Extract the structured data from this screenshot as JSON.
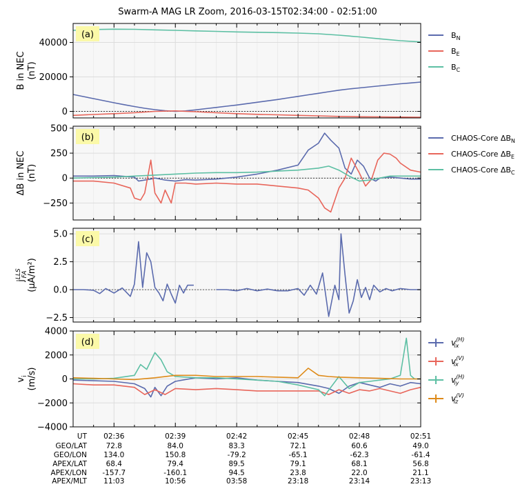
{
  "figure": {
    "title": "Swarm-A MAG LR Zoom, 2016-03-15T02:34:00 - 02:51:00",
    "background": "#ffffff",
    "plot_background": "#f7f7f7",
    "label_box_color": "#fbf9a8"
  },
  "colors": {
    "blue": "#5a6aad",
    "red": "#e8655a",
    "teal": "#5cbfa3",
    "orange": "#de8a18"
  },
  "chart_data": [
    {
      "type": "line",
      "panel_label": "(a)",
      "ylabel": [
        "B in NEC",
        "(nT)"
      ],
      "x": "UT time",
      "ylim": [
        -3800,
        51000
      ],
      "yticks": [
        0,
        20000,
        40000
      ],
      "ytick_labels": [
        "0",
        "20000",
        "40000"
      ],
      "zero_line": true,
      "legend": "right-outside",
      "series": [
        {
          "name": "B_N",
          "legend_main": "B",
          "legend_sub": "N",
          "color": "blue",
          "x": [
            0.0,
            0.5,
            1.0,
            1.5,
            2.0,
            2.5,
            3.0,
            3.5,
            4.0,
            4.5,
            5.0,
            5.5,
            6.0,
            6.5,
            7.0,
            7.5,
            8.0,
            8.5,
            9.0,
            9.5,
            10.0,
            10.5,
            11.0,
            11.5,
            12.0,
            12.5,
            13.0,
            13.5,
            14.0,
            14.5,
            15.0,
            15.5,
            16.0,
            16.5,
            17.0
          ],
          "y": [
            9800,
            8600,
            7400,
            6200,
            5000,
            3900,
            2800,
            1800,
            1000,
            400,
            0,
            300,
            900,
            1600,
            2300,
            3000,
            3700,
            4500,
            5300,
            6100,
            6900,
            7800,
            8700,
            9600,
            10500,
            11400,
            12300,
            13000,
            13600,
            14200,
            14800,
            15400,
            16000,
            16500,
            17000
          ]
        },
        {
          "name": "B_E",
          "legend_main": "B",
          "legend_sub": "E",
          "color": "red",
          "x": [
            0.0,
            1.0,
            2.0,
            3.0,
            4.0,
            5.0,
            6.0,
            7.0,
            8.0,
            9.0,
            10.0,
            11.0,
            12.0,
            13.0,
            14.0,
            15.0,
            16.0,
            17.0
          ],
          "y": [
            -2300,
            -1800,
            -1300,
            -800,
            0,
            300,
            -200,
            -800,
            -1300,
            -1700,
            -2000,
            -2300,
            -2600,
            -2900,
            -3100,
            -3200,
            -3300,
            -3400
          ]
        },
        {
          "name": "B_C",
          "legend_main": "B",
          "legend_sub": "C",
          "color": "teal",
          "x": [
            0.0,
            1.0,
            2.0,
            3.0,
            4.0,
            5.0,
            6.0,
            7.0,
            8.0,
            9.0,
            10.0,
            11.0,
            12.0,
            13.0,
            14.0,
            15.0,
            16.0,
            17.0
          ],
          "y": [
            47000,
            47500,
            47700,
            47600,
            47300,
            47000,
            46700,
            46400,
            46100,
            45900,
            45700,
            45400,
            45000,
            44200,
            43200,
            42100,
            41000,
            40300
          ]
        }
      ]
    },
    {
      "type": "line",
      "panel_label": "(b)",
      "ylabel": [
        "ΔB in NEC",
        "(nT)"
      ],
      "ylim": [
        -420,
        520
      ],
      "yticks": [
        -250,
        0,
        250,
        500
      ],
      "ytick_labels": [
        "−250",
        "0",
        "250",
        "500"
      ],
      "zero_line": true,
      "legend": "right-outside",
      "series": [
        {
          "name": "CHAOS-Core ΔB_N",
          "legend_main": "CHAOS-Core ΔB",
          "legend_sub": "N",
          "color": "blue",
          "x": [
            0.0,
            1.0,
            2.0,
            3.0,
            3.2,
            3.5,
            3.8,
            4.0,
            4.5,
            5.0,
            5.5,
            6.0,
            7.0,
            8.0,
            9.0,
            10.0,
            11.0,
            11.5,
            12.0,
            12.3,
            12.6,
            13.0,
            13.3,
            13.6,
            13.9,
            14.2,
            14.5,
            14.8,
            15.0,
            15.5,
            16.0,
            16.5,
            17.0
          ],
          "y": [
            20,
            20,
            25,
            10,
            -30,
            -20,
            -10,
            0,
            -20,
            -30,
            -15,
            -20,
            -10,
            10,
            40,
            80,
            130,
            280,
            350,
            450,
            380,
            300,
            100,
            40,
            180,
            120,
            0,
            -30,
            0,
            10,
            0,
            -10,
            -10
          ]
        },
        {
          "name": "CHAOS-Core ΔB_E",
          "legend_main": "CHAOS-Core ΔB",
          "legend_sub": "E",
          "color": "red",
          "x": [
            0.0,
            1.0,
            2.0,
            2.8,
            3.0,
            3.3,
            3.5,
            3.8,
            4.0,
            4.3,
            4.5,
            4.8,
            5.0,
            5.5,
            6.0,
            7.0,
            8.0,
            9.0,
            10.0,
            11.0,
            11.5,
            12.0,
            12.3,
            12.6,
            13.0,
            13.3,
            13.6,
            14.0,
            14.3,
            14.6,
            14.9,
            15.2,
            15.5,
            15.8,
            16.0,
            16.5,
            17.0
          ],
          "y": [
            -30,
            -30,
            -50,
            -100,
            -200,
            -220,
            -150,
            180,
            -150,
            -250,
            -120,
            -250,
            -50,
            -50,
            -60,
            -50,
            -60,
            -60,
            -80,
            -100,
            -120,
            -200,
            -300,
            -340,
            -100,
            0,
            200,
            50,
            -80,
            -10,
            180,
            250,
            240,
            200,
            150,
            80,
            60
          ]
        },
        {
          "name": "CHAOS-Core ΔB_C",
          "legend_main": "CHAOS-Core ΔB",
          "legend_sub": "C",
          "color": "teal",
          "x": [
            0.0,
            1.0,
            2.0,
            3.0,
            4.0,
            5.0,
            6.0,
            7.0,
            8.0,
            9.0,
            10.0,
            11.0,
            12.0,
            12.5,
            13.0,
            13.5,
            14.0,
            14.5,
            15.0,
            15.5,
            16.0,
            17.0
          ],
          "y": [
            0,
            5,
            10,
            20,
            30,
            40,
            50,
            55,
            55,
            60,
            70,
            80,
            100,
            120,
            80,
            20,
            -30,
            -20,
            0,
            20,
            20,
            20
          ]
        }
      ]
    },
    {
      "type": "line",
      "panel_label": "(c)",
      "ylabel": [
        "j_FA^LLS",
        "(μA/m²)"
      ],
      "ylabel_main": "j",
      "ylabel_sup": "LLS",
      "ylabel_sub": "FA",
      "ylabel_unit": "(μA/m²)",
      "ylim": [
        -2.9,
        5.5
      ],
      "yticks": [
        -2.5,
        0.0,
        2.5,
        5.0
      ],
      "ytick_labels": [
        "−2.5",
        "0.0",
        "2.5",
        "5.0"
      ],
      "zero_line": true,
      "series": [
        {
          "name": "",
          "color": "blue",
          "x": [
            0.0,
            0.5,
            1.0,
            1.3,
            1.6,
            2.0,
            2.4,
            2.8,
            3.0,
            3.2,
            3.4,
            3.6,
            3.8,
            4.0,
            4.2,
            4.4,
            4.6,
            4.8,
            5.0,
            5.2,
            5.4,
            5.6,
            5.9
          ],
          "y": [
            0,
            0,
            -0.05,
            -0.35,
            0.1,
            -0.3,
            0.15,
            -0.6,
            0.5,
            4.3,
            0.2,
            3.3,
            2.5,
            0.2,
            -0.3,
            -1.0,
            0.5,
            -0.4,
            -1.2,
            0.4,
            -0.3,
            0.4,
            0.4
          ]
        },
        {
          "name": "",
          "color": "blue",
          "x": [
            7.0,
            7.5,
            8.0,
            8.5,
            9.0,
            9.5,
            10.0,
            10.5,
            11.0,
            11.3,
            11.6,
            11.9,
            12.2,
            12.5,
            12.8,
            13.0,
            13.1,
            13.3,
            13.5,
            13.7,
            13.9,
            14.1,
            14.3,
            14.5,
            14.7,
            15.0,
            15.3,
            15.6,
            16.0,
            16.5,
            17.0
          ],
          "y": [
            0,
            0,
            -0.1,
            0.1,
            -0.1,
            0.05,
            -0.1,
            -0.1,
            0.1,
            -0.5,
            0.4,
            -0.4,
            1.5,
            -2.4,
            0.4,
            -0.9,
            5.0,
            1.3,
            -2.1,
            -1.0,
            0.9,
            -0.7,
            0.2,
            -0.9,
            0.4,
            -0.2,
            0.1,
            -0.1,
            0.1,
            0,
            0
          ]
        }
      ]
    },
    {
      "type": "line",
      "panel_label": "(d)",
      "ylabel": [
        "v_i",
        "(m/s)"
      ],
      "ylabel_main": "v",
      "ylabel_sub": "i",
      "ylabel_unit": "(m/s)",
      "ylim": [
        -4000,
        4000
      ],
      "yticks": [
        -4000,
        -2000,
        0,
        2000,
        4000
      ],
      "ytick_labels": [
        "−4000",
        "−2000",
        "0",
        "2000",
        "4000"
      ],
      "legend": "right-outside",
      "series": [
        {
          "name": "v_ix^(H)",
          "legend_main": "v",
          "legend_sub": "ix",
          "legend_sup": "(H)",
          "color": "blue",
          "x": [
            0.0,
            1.0,
            2.0,
            3.0,
            3.5,
            3.8,
            4.0,
            4.3,
            4.6,
            5.0,
            6.0,
            7.0,
            8.0,
            9.0,
            10.0,
            11.0,
            12.0,
            12.5,
            13.0,
            13.5,
            14.0,
            14.5,
            15.0,
            15.5,
            16.0,
            16.5,
            17.0
          ],
          "y": [
            -100,
            -150,
            -200,
            -400,
            -800,
            -1500,
            -700,
            -1400,
            -600,
            -200,
            100,
            0,
            100,
            -100,
            -200,
            -300,
            -600,
            -800,
            -1200,
            -600,
            -300,
            -500,
            -700,
            -400,
            -600,
            -300,
            -400
          ]
        },
        {
          "name": "v_ix^(V)",
          "legend_main": "v",
          "legend_sub": "ix",
          "legend_sup": "(V)",
          "color": "red",
          "x": [
            0.0,
            1.0,
            2.0,
            3.0,
            3.5,
            4.0,
            4.5,
            5.0,
            6.0,
            7.0,
            8.0,
            9.0,
            10.0,
            11.0,
            12.0,
            12.5,
            13.0,
            13.5,
            14.0,
            14.5,
            15.0,
            15.5,
            16.0,
            16.5,
            17.0
          ],
          "y": [
            -400,
            -500,
            -500,
            -700,
            -1300,
            -900,
            -1300,
            -800,
            -900,
            -800,
            -900,
            -1000,
            -1000,
            -1000,
            -1000,
            -1300,
            -900,
            -1200,
            -900,
            -1000,
            -800,
            -1000,
            -1200,
            -900,
            -700
          ]
        },
        {
          "name": "v_iy^(H)",
          "legend_main": "v",
          "legend_sub": "iy",
          "legend_sup": "(H)",
          "color": "teal",
          "x": [
            0.0,
            1.0,
            2.0,
            3.0,
            3.3,
            3.6,
            4.0,
            4.3,
            4.6,
            5.0,
            6.0,
            7.0,
            8.0,
            9.0,
            10.0,
            11.0,
            12.0,
            12.3,
            12.6,
            13.0,
            13.5,
            14.0,
            14.5,
            15.0,
            15.5,
            16.0,
            16.3,
            16.5,
            16.7,
            17.0
          ],
          "y": [
            0,
            0,
            50,
            300,
            1200,
            800,
            2200,
            1600,
            600,
            200,
            100,
            100,
            0,
            -100,
            -200,
            -500,
            -900,
            -1400,
            -700,
            200,
            -800,
            -300,
            -200,
            -100,
            0,
            300,
            3400,
            300,
            0,
            0
          ]
        },
        {
          "name": "v_iz^(V)",
          "legend_main": "v",
          "legend_sub": "iz",
          "legend_sup": "(V)",
          "color": "orange",
          "x": [
            0.0,
            1.0,
            2.0,
            3.0,
            4.0,
            5.0,
            6.0,
            7.0,
            8.0,
            9.0,
            10.0,
            11.0,
            11.5,
            12.0,
            12.5,
            13.0,
            14.0,
            15.0,
            16.0,
            17.0
          ],
          "y": [
            100,
            50,
            0,
            -50,
            100,
            300,
            300,
            200,
            200,
            200,
            150,
            100,
            900,
            300,
            200,
            150,
            100,
            50,
            0,
            0
          ]
        }
      ]
    }
  ],
  "x_axis": {
    "range_minutes": [
      0,
      17
    ],
    "major_tick_minutes": [
      2,
      5,
      8,
      11,
      14,
      17
    ],
    "row_labels": [
      "UT",
      "GEO/LAT",
      "GEO/LON",
      "APEX/LAT",
      "APEX/LON",
      "APEX/MLT"
    ],
    "columns": [
      [
        "02:36",
        "72.8",
        "134.0",
        "68.4",
        "-157.7",
        "11:03"
      ],
      [
        "02:39",
        "84.0",
        "150.8",
        "79.4",
        "-160.1",
        "10:56"
      ],
      [
        "02:42",
        "83.3",
        "-79.2",
        "89.5",
        "94.5",
        "03:58"
      ],
      [
        "02:45",
        "72.1",
        "-65.1",
        "79.1",
        "23.8",
        "23:18"
      ],
      [
        "02:48",
        "60.6",
        "-62.3",
        "68.1",
        "22.0",
        "23:14"
      ],
      [
        "02:51",
        "49.0",
        "-61.4",
        "56.8",
        "21.1",
        "23:13"
      ]
    ]
  }
}
